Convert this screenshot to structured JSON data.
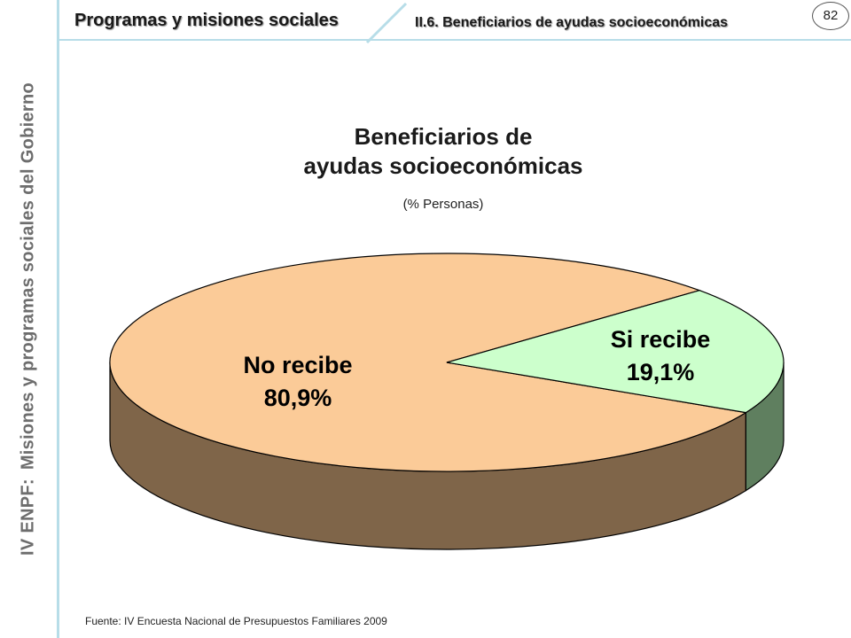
{
  "side_label": {
    "prefix": "IV ENPF:",
    "text": "Misiones y programas sociales del Gobierno"
  },
  "header": {
    "section_title": "Programas y misiones sociales",
    "subsection_title": "II.6. Beneficiarios de ayudas socioeconómicas",
    "page_number": "82"
  },
  "source": "Fuente: IV Encuesta Nacional de Presupuestos Familiares 2009",
  "colors": {
    "no_recibe_top": "#fbcb98",
    "no_recibe_side": "#7f6549",
    "si_recibe_top": "#ccffcc",
    "si_recibe_side": "#5f7f5f",
    "accent_line": "#b7dde8"
  },
  "chart_data": {
    "type": "pie",
    "title_line1": "Beneficiarios de",
    "title_line2": "ayudas socioeconómicas",
    "subtitle": "(% Personas)",
    "slices": [
      {
        "label": "No recibe",
        "value": 80.9,
        "value_label": "80,9%"
      },
      {
        "label": "Si recibe",
        "value": 19.1,
        "value_label": "19,1%"
      }
    ]
  }
}
